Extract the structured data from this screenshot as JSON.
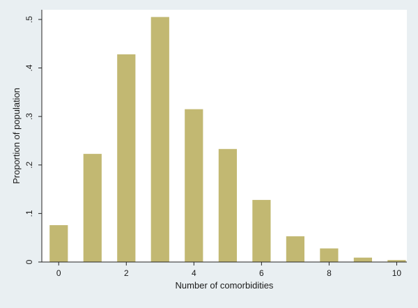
{
  "chart_data": {
    "type": "bar",
    "xlabel": "Number of comorbidities",
    "ylabel": "Proportion of population",
    "xlim": [
      -0.5,
      10.3
    ],
    "ylim": [
      0,
      0.52
    ],
    "x_ticks": [
      0,
      2,
      4,
      6,
      8,
      10
    ],
    "x_tick_labels": [
      "0",
      "2",
      "4",
      "6",
      "8",
      "10"
    ],
    "y_ticks": [
      0,
      0.1,
      0.2,
      0.3,
      0.4,
      0.5
    ],
    "y_tick_labels": [
      "0",
      ".1",
      ".2",
      ".3",
      ".4",
      ".5"
    ],
    "bars": [
      {
        "x": 0,
        "value": 0.076
      },
      {
        "x": 1,
        "value": 0.223
      },
      {
        "x": 2,
        "value": 0.428
      },
      {
        "x": 3,
        "value": 0.505
      },
      {
        "x": 4,
        "value": 0.315
      },
      {
        "x": 5,
        "value": 0.233
      },
      {
        "x": 6,
        "value": 0.128
      },
      {
        "x": 7,
        "value": 0.053
      },
      {
        "x": 8,
        "value": 0.028
      },
      {
        "x": 9,
        "value": 0.009
      },
      {
        "x": 10,
        "value": 0.004
      }
    ],
    "grid": false,
    "colors": {
      "bar": "#c2b872",
      "plot_background": "#ffffff",
      "page_background": "#e9eff2",
      "axis": "#222222"
    }
  }
}
